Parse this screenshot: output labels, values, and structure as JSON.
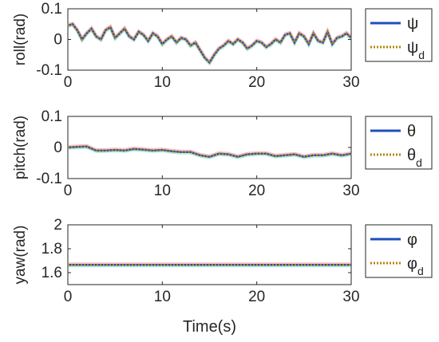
{
  "colors": {
    "actual": "#1f4fbf",
    "desired": "#b8860b",
    "noise_a": "#e84a5f",
    "noise_b": "#2ec4b6",
    "axis": "#262626"
  },
  "shared_xlabel": "Time(s)",
  "chart_data": [
    {
      "type": "line",
      "ylabel": "roll(rad)",
      "xlim": [
        0,
        30
      ],
      "ylim": [
        -0.1,
        0.1
      ],
      "xticks": [
        "0",
        "10",
        "20",
        "30"
      ],
      "yticks": [
        "-0.1",
        "0",
        "0.1"
      ],
      "x": [
        0,
        0.5,
        1,
        1.5,
        2,
        2.5,
        3,
        3.5,
        4,
        4.5,
        5,
        5.5,
        6,
        6.5,
        7,
        7.5,
        8,
        8.5,
        9,
        9.5,
        10,
        10.5,
        11,
        11.5,
        12,
        12.5,
        13,
        13.5,
        14,
        14.5,
        15,
        15.5,
        16,
        16.5,
        17,
        17.5,
        18,
        18.5,
        19,
        19.5,
        20,
        20.5,
        21,
        21.5,
        22,
        22.5,
        23,
        23.5,
        24,
        24.5,
        25,
        25.5,
        26,
        26.5,
        27,
        27.5,
        28,
        28.5,
        29,
        29.5,
        30
      ],
      "series": [
        {
          "name": "ψ",
          "style": "solid",
          "values": [
            0.045,
            0.05,
            0.03,
            0.0,
            0.02,
            0.035,
            0.01,
            0.0,
            0.03,
            0.04,
            0.005,
            0.02,
            0.035,
            0.01,
            0.0,
            0.025,
            0.015,
            -0.005,
            0.02,
            0.01,
            -0.015,
            0.0,
            0.01,
            -0.01,
            0.005,
            0.0,
            -0.02,
            -0.01,
            -0.035,
            -0.06,
            -0.075,
            -0.05,
            -0.03,
            -0.02,
            -0.005,
            -0.015,
            0.0,
            -0.01,
            -0.03,
            -0.02,
            -0.005,
            -0.01,
            -0.025,
            -0.015,
            0.0,
            -0.01,
            0.015,
            0.02,
            -0.01,
            0.02,
            0.01,
            -0.015,
            0.02,
            -0.005,
            -0.01,
            0.025,
            -0.015,
            0.005,
            0.01,
            0.02,
            0.005
          ]
        },
        {
          "name": "ψ",
          "name_sub": "d",
          "style": "dotted",
          "values": [
            0.045,
            0.05,
            0.03,
            0.0,
            0.02,
            0.035,
            0.01,
            0.0,
            0.03,
            0.04,
            0.005,
            0.02,
            0.035,
            0.01,
            0.0,
            0.025,
            0.015,
            -0.005,
            0.02,
            0.01,
            -0.015,
            0.0,
            0.01,
            -0.01,
            0.005,
            0.0,
            -0.02,
            -0.01,
            -0.035,
            -0.06,
            -0.075,
            -0.05,
            -0.03,
            -0.02,
            -0.005,
            -0.015,
            0.0,
            -0.01,
            -0.03,
            -0.02,
            -0.005,
            -0.01,
            -0.025,
            -0.015,
            0.0,
            -0.01,
            0.015,
            0.02,
            -0.01,
            0.02,
            0.01,
            -0.015,
            0.02,
            -0.005,
            -0.01,
            0.025,
            -0.015,
            0.005,
            0.01,
            0.02,
            0.005
          ]
        }
      ]
    },
    {
      "type": "line",
      "ylabel": "pitch(rad)",
      "xlim": [
        0,
        30
      ],
      "ylim": [
        -0.1,
        0.1
      ],
      "xticks": [
        "0",
        "10",
        "20",
        "30"
      ],
      "yticks": [
        "-0.1",
        "0",
        "0.1"
      ],
      "x": [
        0,
        1,
        2,
        3,
        4,
        5,
        6,
        7,
        8,
        9,
        10,
        11,
        12,
        13,
        14,
        15,
        16,
        17,
        18,
        19,
        20,
        21,
        22,
        23,
        24,
        25,
        26,
        27,
        28,
        29,
        30
      ],
      "series": [
        {
          "name": "θ",
          "style": "solid",
          "values": [
            0.0,
            0.002,
            0.003,
            -0.01,
            -0.01,
            -0.008,
            -0.01,
            -0.005,
            -0.007,
            -0.01,
            -0.008,
            -0.012,
            -0.015,
            -0.015,
            -0.025,
            -0.03,
            -0.02,
            -0.022,
            -0.03,
            -0.022,
            -0.02,
            -0.02,
            -0.028,
            -0.025,
            -0.022,
            -0.03,
            -0.025,
            -0.025,
            -0.02,
            -0.025,
            -0.02
          ]
        },
        {
          "name": "θ",
          "name_sub": "d",
          "style": "dotted",
          "values": [
            0.0,
            0.002,
            0.003,
            -0.01,
            -0.01,
            -0.008,
            -0.01,
            -0.005,
            -0.007,
            -0.01,
            -0.008,
            -0.012,
            -0.015,
            -0.015,
            -0.025,
            -0.03,
            -0.02,
            -0.022,
            -0.03,
            -0.022,
            -0.02,
            -0.02,
            -0.028,
            -0.025,
            -0.022,
            -0.03,
            -0.025,
            -0.025,
            -0.02,
            -0.025,
            -0.02
          ]
        }
      ]
    },
    {
      "type": "line",
      "ylabel": "yaw(rad)",
      "xlim": [
        0,
        30
      ],
      "ylim": [
        1.5,
        2
      ],
      "xticks": [
        "0",
        "10",
        "20",
        "30"
      ],
      "yticks": [
        "1.6",
        "1.8",
        "2"
      ],
      "x": [
        0,
        30
      ],
      "series": [
        {
          "name": "φ",
          "style": "solid",
          "values": [
            1.665,
            1.665
          ]
        },
        {
          "name": "φ",
          "name_sub": "d",
          "style": "dotted",
          "values": [
            1.665,
            1.665
          ]
        }
      ]
    }
  ]
}
